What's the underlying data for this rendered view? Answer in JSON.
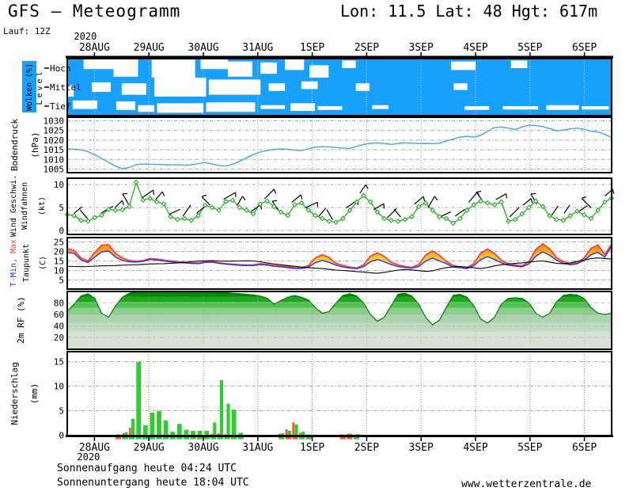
{
  "header": {
    "title": "GFS — Meteogramm",
    "location": "Lon: 11.5 Lat: 48 Hgt: 617m",
    "run": "Lauf: 12Z"
  },
  "footer": {
    "sunrise": "Sonnenaufgang heute 04:24 UTC",
    "sunset": "Sonnenuntergang heute 18:04 UTC",
    "watermark": "www.wetterzentrale.de"
  },
  "axis": {
    "year": "2020",
    "date_labels": [
      "28AUG",
      "29AUG",
      "30AUG",
      "31AUG",
      "1SEP",
      "2SEP",
      "3SEP",
      "4SEP",
      "5SEP",
      "6SEP"
    ],
    "days": 10,
    "step_hours": 3
  },
  "colors": {
    "cloud_blue": "#18A0FF",
    "pressure_line": "#44A4E4",
    "wind_green": "#1FAE1F",
    "temp_max_red": "#FF3C3C",
    "temp_min_blue": "#2832E6",
    "dewpoint_black": "#000000",
    "rh_green_dark": "#007800",
    "precip_green": "#2ECC2E",
    "precip_red": "#FF5533",
    "grid_gray": "#A8A8A8"
  },
  "chart_data": [
    {
      "id": "clouds",
      "type": "area",
      "label": "Wolken (%)",
      "row_axis_label": "Level",
      "rows": [
        "Hoch",
        "Mittel",
        "Tief"
      ],
      "note": "blue = cloud, white = clear",
      "clear_patches": [
        [
          0,
          0.3,
          0.9,
          0.0,
          0.55
        ],
        [
          0,
          0.85,
          1.3,
          0.0,
          0.95
        ],
        [
          0,
          1.55,
          2.35,
          0.05,
          1.0
        ],
        [
          0,
          2.45,
          2.95,
          0.0,
          0.55
        ],
        [
          0,
          2.95,
          3.4,
          0.15,
          0.95
        ],
        [
          0,
          3.55,
          3.85,
          0.2,
          0.8
        ],
        [
          0,
          4.0,
          4.35,
          0.0,
          0.6
        ],
        [
          0,
          4.45,
          4.8,
          0.35,
          1.0
        ],
        [
          0,
          5.05,
          5.3,
          0.1,
          0.5
        ],
        [
          0,
          7.05,
          7.5,
          0.15,
          0.6
        ],
        [
          0,
          8.15,
          8.45,
          0.1,
          0.5
        ],
        [
          1,
          0.0,
          0.12,
          0.4,
          1.0
        ],
        [
          1,
          0.45,
          0.8,
          0.25,
          0.75
        ],
        [
          1,
          1.0,
          1.45,
          0.3,
          0.9
        ],
        [
          1,
          1.6,
          2.55,
          0.0,
          1.0
        ],
        [
          1,
          2.6,
          3.55,
          0.1,
          0.9
        ],
        [
          1,
          3.7,
          4.0,
          0.3,
          0.7
        ],
        [
          1,
          4.3,
          4.6,
          0.2,
          0.6
        ],
        [
          1,
          5.3,
          5.55,
          0.3,
          0.7
        ],
        [
          1,
          7.1,
          7.35,
          0.3,
          0.65
        ],
        [
          2,
          0.1,
          0.55,
          0.2,
          0.65
        ],
        [
          2,
          0.9,
          1.25,
          0.25,
          0.7
        ],
        [
          2,
          1.3,
          1.6,
          0.45,
          0.8
        ],
        [
          2,
          1.65,
          2.5,
          0.35,
          0.85
        ],
        [
          2,
          2.55,
          3.45,
          0.3,
          0.8
        ],
        [
          2,
          3.55,
          4.0,
          0.45,
          0.65
        ],
        [
          2,
          4.1,
          4.55,
          0.35,
          0.75
        ],
        [
          2,
          4.6,
          5.05,
          0.5,
          0.7
        ],
        [
          2,
          5.6,
          5.9,
          0.45,
          0.65
        ],
        [
          2,
          7.3,
          7.75,
          0.5,
          0.7
        ],
        [
          2,
          8.0,
          8.65,
          0.5,
          0.68
        ],
        [
          2,
          8.8,
          9.4,
          0.45,
          0.7
        ],
        [
          2,
          9.45,
          9.95,
          0.5,
          0.68
        ]
      ]
    },
    {
      "id": "pressure",
      "type": "line",
      "label": "Bodendruck",
      "unit": "(hPa)",
      "yticks": [
        1005,
        1010,
        1015,
        1020,
        1025,
        1030
      ],
      "ylim": [
        1003,
        1032
      ],
      "values": [
        1015.5,
        1015.3,
        1015.0,
        1014.0,
        1012.5,
        1010.5,
        1008.5,
        1006.5,
        1005.2,
        1005.8,
        1007.3,
        1007.6,
        1007.5,
        1007.4,
        1007.3,
        1007.2,
        1007.2,
        1007.0,
        1007.2,
        1007.8,
        1008.4,
        1007.6,
        1006.8,
        1006.6,
        1007.5,
        1009.0,
        1010.8,
        1012.5,
        1013.8,
        1014.6,
        1015.2,
        1015.4,
        1015.3,
        1014.8,
        1014.6,
        1015.5,
        1016.4,
        1016.6,
        1016.5,
        1016.2,
        1015.8,
        1015.6,
        1016.8,
        1017.8,
        1018.3,
        1018.6,
        1018.2,
        1017.8,
        1018.2,
        1018.6,
        1018.4,
        1018.2,
        1018.3,
        1018.2,
        1018.4,
        1019.5,
        1020.5,
        1021.5,
        1022.0,
        1021.5,
        1022.5,
        1024.5,
        1026.5,
        1026.8,
        1026.2,
        1025.5,
        1026.8,
        1027.8,
        1027.5,
        1027.0,
        1026.0,
        1024.8,
        1025.2,
        1025.8,
        1026.2,
        1025.6,
        1024.6,
        1024.2,
        1023.0,
        1021.4
      ]
    },
    {
      "id": "wind",
      "type": "line",
      "label": "Wind Geschwi.",
      "label2": "Windfahnen",
      "unit": "(kt)",
      "yticks": [
        0,
        5,
        10
      ],
      "ylim": [
        0,
        11.4
      ],
      "values": [
        3.5,
        3.2,
        2.2,
        2.0,
        2.8,
        3.3,
        4.6,
        4.4,
        4.5,
        5.2,
        10.5,
        6.6,
        7.0,
        6.2,
        5.8,
        3.0,
        2.4,
        2.6,
        2.2,
        3.2,
        5.5,
        5.0,
        4.4,
        6.3,
        6.6,
        5.0,
        4.4,
        3.6,
        5.8,
        6.4,
        5.2,
        4.0,
        3.3,
        5.6,
        6.0,
        4.4,
        3.3,
        2.6,
        2.0,
        1.8,
        2.6,
        4.4,
        6.2,
        7.6,
        6.2,
        4.0,
        2.6,
        2.2,
        2.0,
        2.4,
        3.0,
        5.2,
        6.0,
        4.4,
        3.0,
        2.6,
        1.6,
        2.6,
        4.4,
        5.6,
        6.4,
        6.0,
        5.6,
        6.2,
        2.0,
        2.4,
        3.6,
        5.0,
        6.4,
        5.2,
        3.2,
        2.4,
        2.2,
        3.2,
        4.2,
        3.4,
        2.6,
        4.4,
        6.2,
        7.0
      ],
      "barb_angles_deg": [
        50,
        -40,
        60,
        45,
        -30,
        55,
        40,
        65,
        35,
        50,
        -45,
        60,
        30,
        55,
        45,
        -35,
        50,
        65,
        40,
        -30,
        55,
        35,
        60,
        45,
        -40,
        50,
        30,
        65,
        55,
        40,
        -35,
        60,
        45,
        50,
        -30,
        35,
        35,
        55,
        -45,
        50
      ]
    },
    {
      "id": "temperature",
      "type": "area",
      "label_min": "T-Min,",
      "label_max": "Max",
      "label2": "Taupunkt",
      "unit": "(C)",
      "yticks": [
        5,
        10,
        15,
        20,
        25
      ],
      "ylim": [
        2.5,
        26
      ],
      "series": [
        {
          "name": "tmax",
          "values": [
            21.5,
            20.5,
            16.5,
            15.0,
            19.5,
            23.3,
            23.5,
            19.0,
            16.5,
            15.2,
            14.8,
            15.2,
            16.3,
            16.0,
            15.4,
            15.0,
            14.6,
            14.3,
            14.0,
            13.9,
            14.6,
            14.8,
            14.1,
            13.6,
            13.3,
            13.0,
            12.9,
            12.9,
            13.6,
            13.3,
            12.6,
            12.3,
            12.0,
            11.5,
            11.4,
            12.6,
            16.6,
            18.3,
            16.8,
            13.8,
            12.6,
            11.8,
            11.3,
            12.9,
            17.6,
            19.3,
            17.4,
            14.3,
            12.9,
            12.1,
            11.6,
            13.1,
            18.1,
            20.3,
            18.0,
            14.8,
            12.6,
            11.9,
            11.4,
            13.6,
            19.1,
            21.3,
            19.0,
            15.3,
            13.6,
            12.9,
            12.4,
            14.6,
            21.1,
            24.0,
            21.4,
            16.8,
            14.6,
            13.6,
            14.1,
            16.6,
            21.6,
            23.4,
            18.5,
            23.8
          ]
        },
        {
          "name": "tmin",
          "values": [
            19.5,
            19.0,
            15.5,
            14.2,
            17.0,
            19.8,
            20.2,
            17.0,
            15.3,
            14.6,
            14.4,
            14.8,
            15.8,
            15.5,
            15.0,
            14.6,
            14.2,
            14.0,
            13.7,
            13.6,
            14.2,
            14.4,
            13.8,
            13.3,
            13.0,
            12.7,
            12.6,
            12.6,
            13.1,
            12.8,
            12.2,
            11.9,
            11.5,
            11.1,
            11.0,
            11.8,
            14.1,
            15.3,
            14.3,
            12.8,
            11.8,
            11.3,
            10.9,
            12.0,
            14.6,
            15.8,
            14.6,
            13.1,
            12.1,
            11.6,
            11.2,
            12.1,
            14.9,
            16.5,
            15.0,
            13.6,
            11.8,
            11.4,
            11.0,
            12.5,
            15.7,
            17.3,
            15.8,
            14.0,
            12.7,
            12.3,
            11.9,
            13.4,
            17.5,
            19.8,
            18.0,
            15.4,
            13.7,
            13.0,
            13.5,
            15.3,
            18.2,
            19.6,
            17.0,
            22.8
          ]
        },
        {
          "name": "taupunkt",
          "values": [
            12.2,
            12.1,
            12.0,
            12.1,
            12.3,
            12.4,
            12.5,
            12.6,
            12.8,
            12.9,
            13.0,
            13.2,
            13.4,
            13.5,
            13.6,
            13.8,
            14.0,
            14.3,
            14.6,
            14.9,
            15.1,
            15.2,
            15.0,
            14.9,
            14.9,
            15.0,
            15.1,
            15.0,
            14.6,
            14.0,
            13.4,
            13.0,
            12.6,
            12.2,
            11.8,
            11.5,
            11.2,
            11.0,
            10.6,
            10.2,
            10.0,
            9.7,
            9.4,
            9.2,
            8.8,
            8.5,
            9.0,
            9.6,
            10.2,
            10.5,
            10.3,
            9.9,
            9.5,
            9.8,
            10.8,
            11.5,
            11.9,
            12.1,
            11.8,
            11.4,
            11.0,
            11.6,
            12.4,
            13.0,
            13.4,
            13.7,
            14.0,
            14.4,
            14.8,
            15.0,
            14.4,
            13.8,
            13.5,
            14.0,
            14.8,
            15.5,
            16.2,
            16.6,
            16.3,
            16.0
          ]
        }
      ]
    },
    {
      "id": "humidity",
      "type": "area",
      "label": "2m RF (%)",
      "yticks": [
        20,
        40,
        60,
        80
      ],
      "ylim": [
        0,
        100
      ],
      "values": [
        65,
        78,
        92,
        96,
        88,
        62,
        55,
        75,
        90,
        97,
        99,
        100,
        100,
        100,
        100,
        100,
        100,
        100,
        99,
        98,
        100,
        100,
        99,
        98,
        97,
        96,
        95,
        94,
        92,
        88,
        78,
        84,
        90,
        93,
        90,
        85,
        72,
        62,
        65,
        80,
        93,
        96,
        92,
        80,
        60,
        48,
        55,
        75,
        95,
        97,
        92,
        78,
        55,
        42,
        50,
        72,
        93,
        95,
        90,
        75,
        52,
        45,
        55,
        78,
        88,
        89,
        88,
        80,
        62,
        55,
        62,
        82,
        93,
        95,
        94,
        88,
        72,
        62,
        60,
        62
      ]
    },
    {
      "id": "precipitation",
      "type": "bar",
      "label": "Niederschlag",
      "unit": "(mm)",
      "yticks": [
        0,
        5,
        10,
        15
      ],
      "ylim": [
        0,
        17
      ],
      "slot_hours": 3,
      "bars": [
        [
          7,
          0,
          0.2
        ],
        [
          8,
          0.6,
          0.4
        ],
        [
          9,
          3.3,
          1.5
        ],
        [
          10,
          14.9,
          0
        ],
        [
          11,
          2.0,
          0
        ],
        [
          12,
          4.6,
          0
        ],
        [
          13,
          4.9,
          0
        ],
        [
          14,
          3.0,
          0
        ],
        [
          15,
          0.7,
          0
        ],
        [
          16,
          2.3,
          0
        ],
        [
          17,
          1.1,
          0
        ],
        [
          18,
          0.9,
          0
        ],
        [
          19,
          0.9,
          0
        ],
        [
          20,
          0.9,
          0
        ],
        [
          21,
          2.6,
          0.3
        ],
        [
          22,
          11.2,
          0.4
        ],
        [
          23,
          6.4,
          0.2
        ],
        [
          24,
          5.2,
          0
        ],
        [
          25,
          0.5,
          0
        ],
        [
          31,
          0.4,
          0.3
        ],
        [
          32,
          0.9,
          1.2
        ],
        [
          33,
          2.2,
          2.6
        ],
        [
          34,
          0.7,
          0.5
        ],
        [
          35,
          0.15,
          0
        ],
        [
          40,
          0.1,
          0.2
        ],
        [
          41,
          0.3,
          0.3
        ],
        [
          42,
          0.2,
          0.1
        ]
      ]
    }
  ]
}
